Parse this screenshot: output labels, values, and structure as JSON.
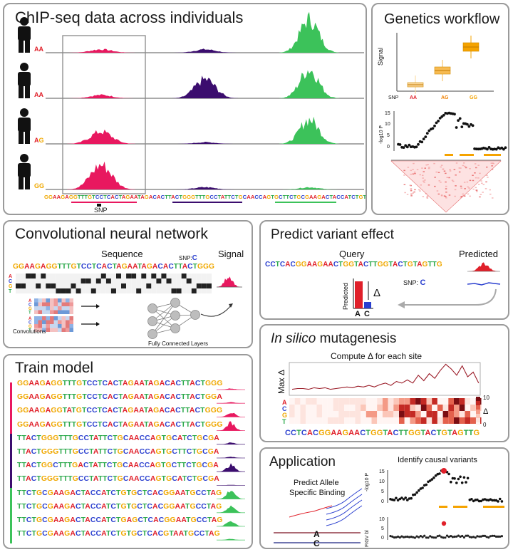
{
  "panels": {
    "chip": {
      "title": "ChIP-seq data across individuals",
      "genotypes": [
        "AA",
        "AA",
        "AG",
        "GG"
      ],
      "sequence": "GGAAGAGGTTTGTCCTCACTAGAATAGACACTTACTGGGTTTGCCTATTCTGCAACCAGTGCTTCTGCGAAGACTACCATCTGTGCTCACGGAATGCC",
      "snp_label": "SNP"
    },
    "genetics": {
      "title": "Genetics workflow",
      "ylabel": "Signal",
      "snp_label": "SNP",
      "groups": [
        "AA",
        "AG",
        "GG"
      ],
      "manhattan_ylabel": "-log10 P",
      "yticks": [
        "15",
        "10",
        "5",
        "0"
      ]
    },
    "cnn": {
      "title": "Convolutional neural network",
      "sequence_label": "Sequence",
      "signal_label": "Signal",
      "snp_label": "SNP:",
      "snp_allele": "C",
      "sequence": "GGAAGAGGTTTGTCCTCACTAGAATAGACACTTACTGGG",
      "bases": [
        "A",
        "C",
        "G",
        "T"
      ],
      "convolutions_label": "Convolutions",
      "fc_label": "Fully Connected Layers"
    },
    "predict": {
      "title": "Predict variant effect",
      "query_label": "Query",
      "predicted_label": "Predicted",
      "sequence": "CCTCACGGAAGAACTGGTACTTGGTACTGTAGTTG",
      "snp_label": "SNP:",
      "snp_allele": "C",
      "bar_ylabel": "Predicted",
      "delta": "Δ",
      "bar_labels": [
        "A",
        "C"
      ]
    },
    "mutagenesis": {
      "title_italic": "In silico",
      "title_rest": " mutagenesis",
      "subtitle": "Compute Δ for each site",
      "max_label": "Max Δ",
      "bases": [
        "A",
        "C",
        "G",
        "T"
      ],
      "sequence": "CCTCACGGAAGAACTGGTACTTGGTACTGTAGTTG",
      "colorbar_ticks": [
        "10",
        "0"
      ],
      "colorbar_label": "Δ"
    },
    "train": {
      "title": "Train model",
      "rows": [
        "GGAAGAGGTTTGTCCTCACTAGAATAGACACTTACTGGG",
        "GGAAGAGGTTTGTCCTCACTAGAATAGACACTTACTGGA",
        "GGAAGAGGTATGTCCTCACTAGAATAGACACTTACTGGG",
        "GGAAGAGGTTTGTCCTCACTAGAATAGACACTTACTGGG",
        "TTACTGGGTTTGCCTATTCTGCAACCAGTGCATCTGCGA",
        "TTACTGGGTTTGCCTATTCTGCAACCAGTGCTTCTGCGA",
        "TTACTGGCTTTGACTATTCTGCAACCAGTGCTTCTGCGA",
        "TTACTGGGTTTGCCTATTCTGCAACCAGTGCATCTGCGA",
        "TTCTGCGAAGACTACCATCTGTGCTCACGGAATGCCTAG",
        "TTCTGCGAAGACTACCATCTGTGCTCACGGAATGCCTAG",
        "TTCTGCGAAGACTACCATCTGAGCTCACGGAATGCCTAG",
        "TTCTGCGAAGACTACCATCTGTGCTCACGTAATGCCTAG"
      ]
    },
    "application": {
      "title": "Application",
      "subtitle": "Identify causal variants",
      "text_line1": "Predict Allele",
      "text_line2": "Specific Binding",
      "allele_a": "A",
      "allele_c": "C",
      "manhattan_ylabel": "-log10 P",
      "second_ylabel": "FIGV bl",
      "yticks": [
        "15",
        "10",
        "5",
        "0"
      ],
      "yticks2": [
        "10",
        "5",
        "0"
      ]
    }
  },
  "colors": {
    "A": "#e0202a",
    "C": "#2a3fcf",
    "G": "#f0a800",
    "T": "#2aa84a",
    "pink": "#e8185f",
    "purple": "#3b0d6e",
    "green": "#3cc25a",
    "orange": "#f5a300",
    "border": "#9a9a9a"
  }
}
